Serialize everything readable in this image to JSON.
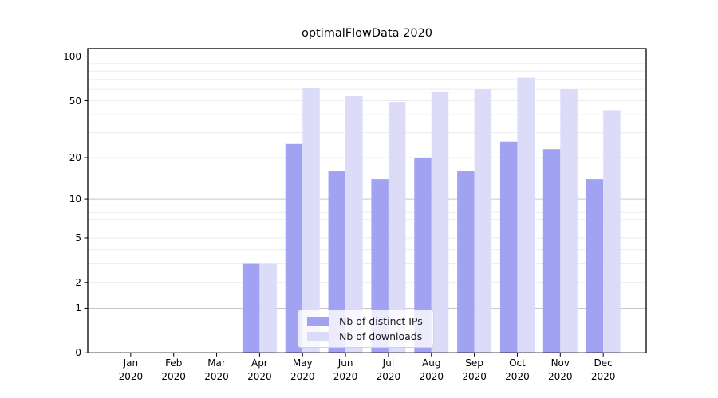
{
  "title": "optimalFlowData 2020",
  "chart_data": {
    "type": "bar",
    "title": "optimalFlowData 2020",
    "scale": "log1p",
    "ylim": [
      0,
      114
    ],
    "yticks": [
      0,
      1,
      2,
      5,
      10,
      20,
      50,
      100
    ],
    "grid_major": [
      1,
      10,
      100
    ],
    "grid_minor": [
      2,
      3,
      4,
      5,
      6,
      7,
      8,
      9,
      20,
      30,
      40,
      50,
      60,
      70,
      80,
      90
    ],
    "categories": [
      "Jan",
      "Feb",
      "Mar",
      "Apr",
      "May",
      "Jun",
      "Jul",
      "Aug",
      "Sep",
      "Oct",
      "Nov",
      "Dec"
    ],
    "year_label": "2020",
    "legend_position": "lower center",
    "grid": true,
    "series": [
      {
        "name": "Nb of distinct IPs",
        "color": "#a2a2f3",
        "values": [
          0,
          0,
          0,
          3,
          25,
          16,
          14,
          20,
          16,
          26,
          23,
          14
        ]
      },
      {
        "name": "Nb of downloads",
        "color": "#dcdcf9",
        "values": [
          0,
          0,
          0,
          3,
          61,
          54,
          49,
          58,
          60,
          72,
          60,
          43
        ]
      }
    ],
    "colors": {
      "grid_major": "#c6c6c6",
      "grid_minor": "#ebebeb",
      "axis": "#000000",
      "text": "#1a1a1a",
      "legend_border": "#d4d4d4"
    }
  }
}
